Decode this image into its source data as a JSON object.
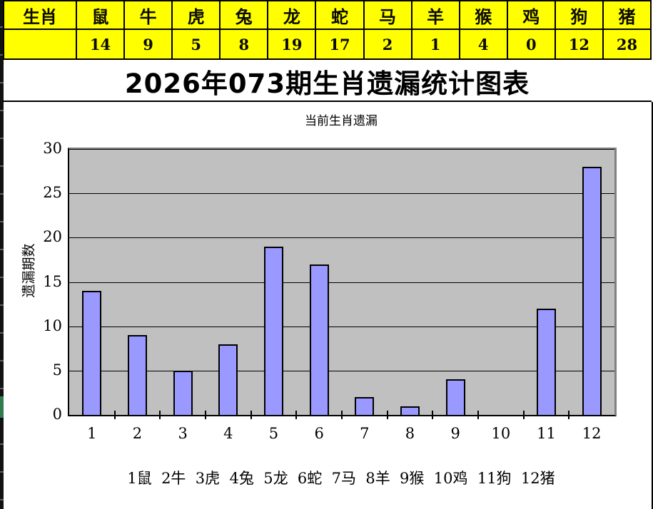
{
  "title": "2026年073期生肖遗漏统计图表",
  "left_strip": {
    "color": "#121212",
    "marker_color": "#2f7d4f"
  },
  "zodiac_table": {
    "header_label": "生肖",
    "bg_color": "#ffff00",
    "columns": [
      "鼠",
      "牛",
      "虎",
      "兔",
      "龙",
      "蛇",
      "马",
      "羊",
      "猴",
      "鸡",
      "狗",
      "猪"
    ],
    "values": [
      14,
      9,
      5,
      8,
      19,
      17,
      2,
      1,
      4,
      0,
      12,
      28
    ]
  },
  "chart_data": {
    "type": "bar",
    "title": "当前生肖遗漏",
    "ylabel": "遗漏期数",
    "xlabel": "",
    "categories": [
      "1",
      "2",
      "3",
      "4",
      "5",
      "6",
      "7",
      "8",
      "9",
      "10",
      "11",
      "12"
    ],
    "values": [
      14,
      9,
      5,
      8,
      19,
      17,
      2,
      1,
      4,
      0,
      12,
      28
    ],
    "ylim": [
      0,
      30
    ],
    "yticks": [
      0,
      5,
      10,
      15,
      20,
      25,
      30
    ],
    "grid": "horizontal",
    "legend": "none",
    "plot_bg": "#c0c0c0",
    "bar_color": "#9999ff",
    "bar_border": "#000000",
    "caption": "1鼠  2牛  3虎  4兔  5龙  6蛇  7马  8羊  9猴  10鸡  11狗  12猪"
  }
}
